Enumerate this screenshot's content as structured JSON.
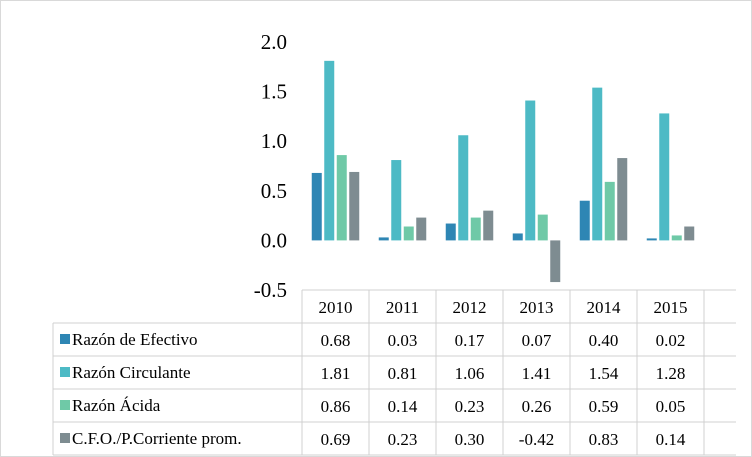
{
  "chart_data": {
    "type": "bar",
    "categories": [
      "2010",
      "2011",
      "2012",
      "2013",
      "2014",
      "2015"
    ],
    "series": [
      {
        "name": "Razón de Efectivo",
        "values": [
          0.68,
          0.03,
          0.17,
          0.07,
          0.4,
          0.02
        ],
        "labels": [
          "0.68",
          "0.03",
          "0.17",
          "0.07",
          "0.40",
          "0.02"
        ],
        "color": "#2e86b4"
      },
      {
        "name": "Razón Circulante",
        "values": [
          1.81,
          0.81,
          1.06,
          1.41,
          1.54,
          1.28
        ],
        "labels": [
          "1.81",
          "0.81",
          "1.06",
          "1.41",
          "1.54",
          "1.28"
        ],
        "color": "#4dbac5"
      },
      {
        "name": "Razón Ácida",
        "values": [
          0.86,
          0.14,
          0.23,
          0.26,
          0.59,
          0.05
        ],
        "labels": [
          "0.86",
          "0.14",
          "0.23",
          "0.26",
          "0.59",
          "0.05"
        ],
        "color": "#6fc9a7"
      },
      {
        "name": "C.F.O./P.Corriente prom.",
        "values": [
          0.69,
          0.23,
          0.3,
          -0.42,
          0.83,
          0.14
        ],
        "labels": [
          "0.69",
          "0.23",
          "0.30",
          "-0.42",
          "0.83",
          "0.14"
        ],
        "color": "#7e8c91"
      }
    ],
    "ylim": [
      -0.5,
      2.0
    ],
    "yticks": [
      "2.0",
      "1.5",
      "1.0",
      "0.5",
      "0.0",
      "-0.5"
    ],
    "legend": "data-table",
    "grid": false
  }
}
